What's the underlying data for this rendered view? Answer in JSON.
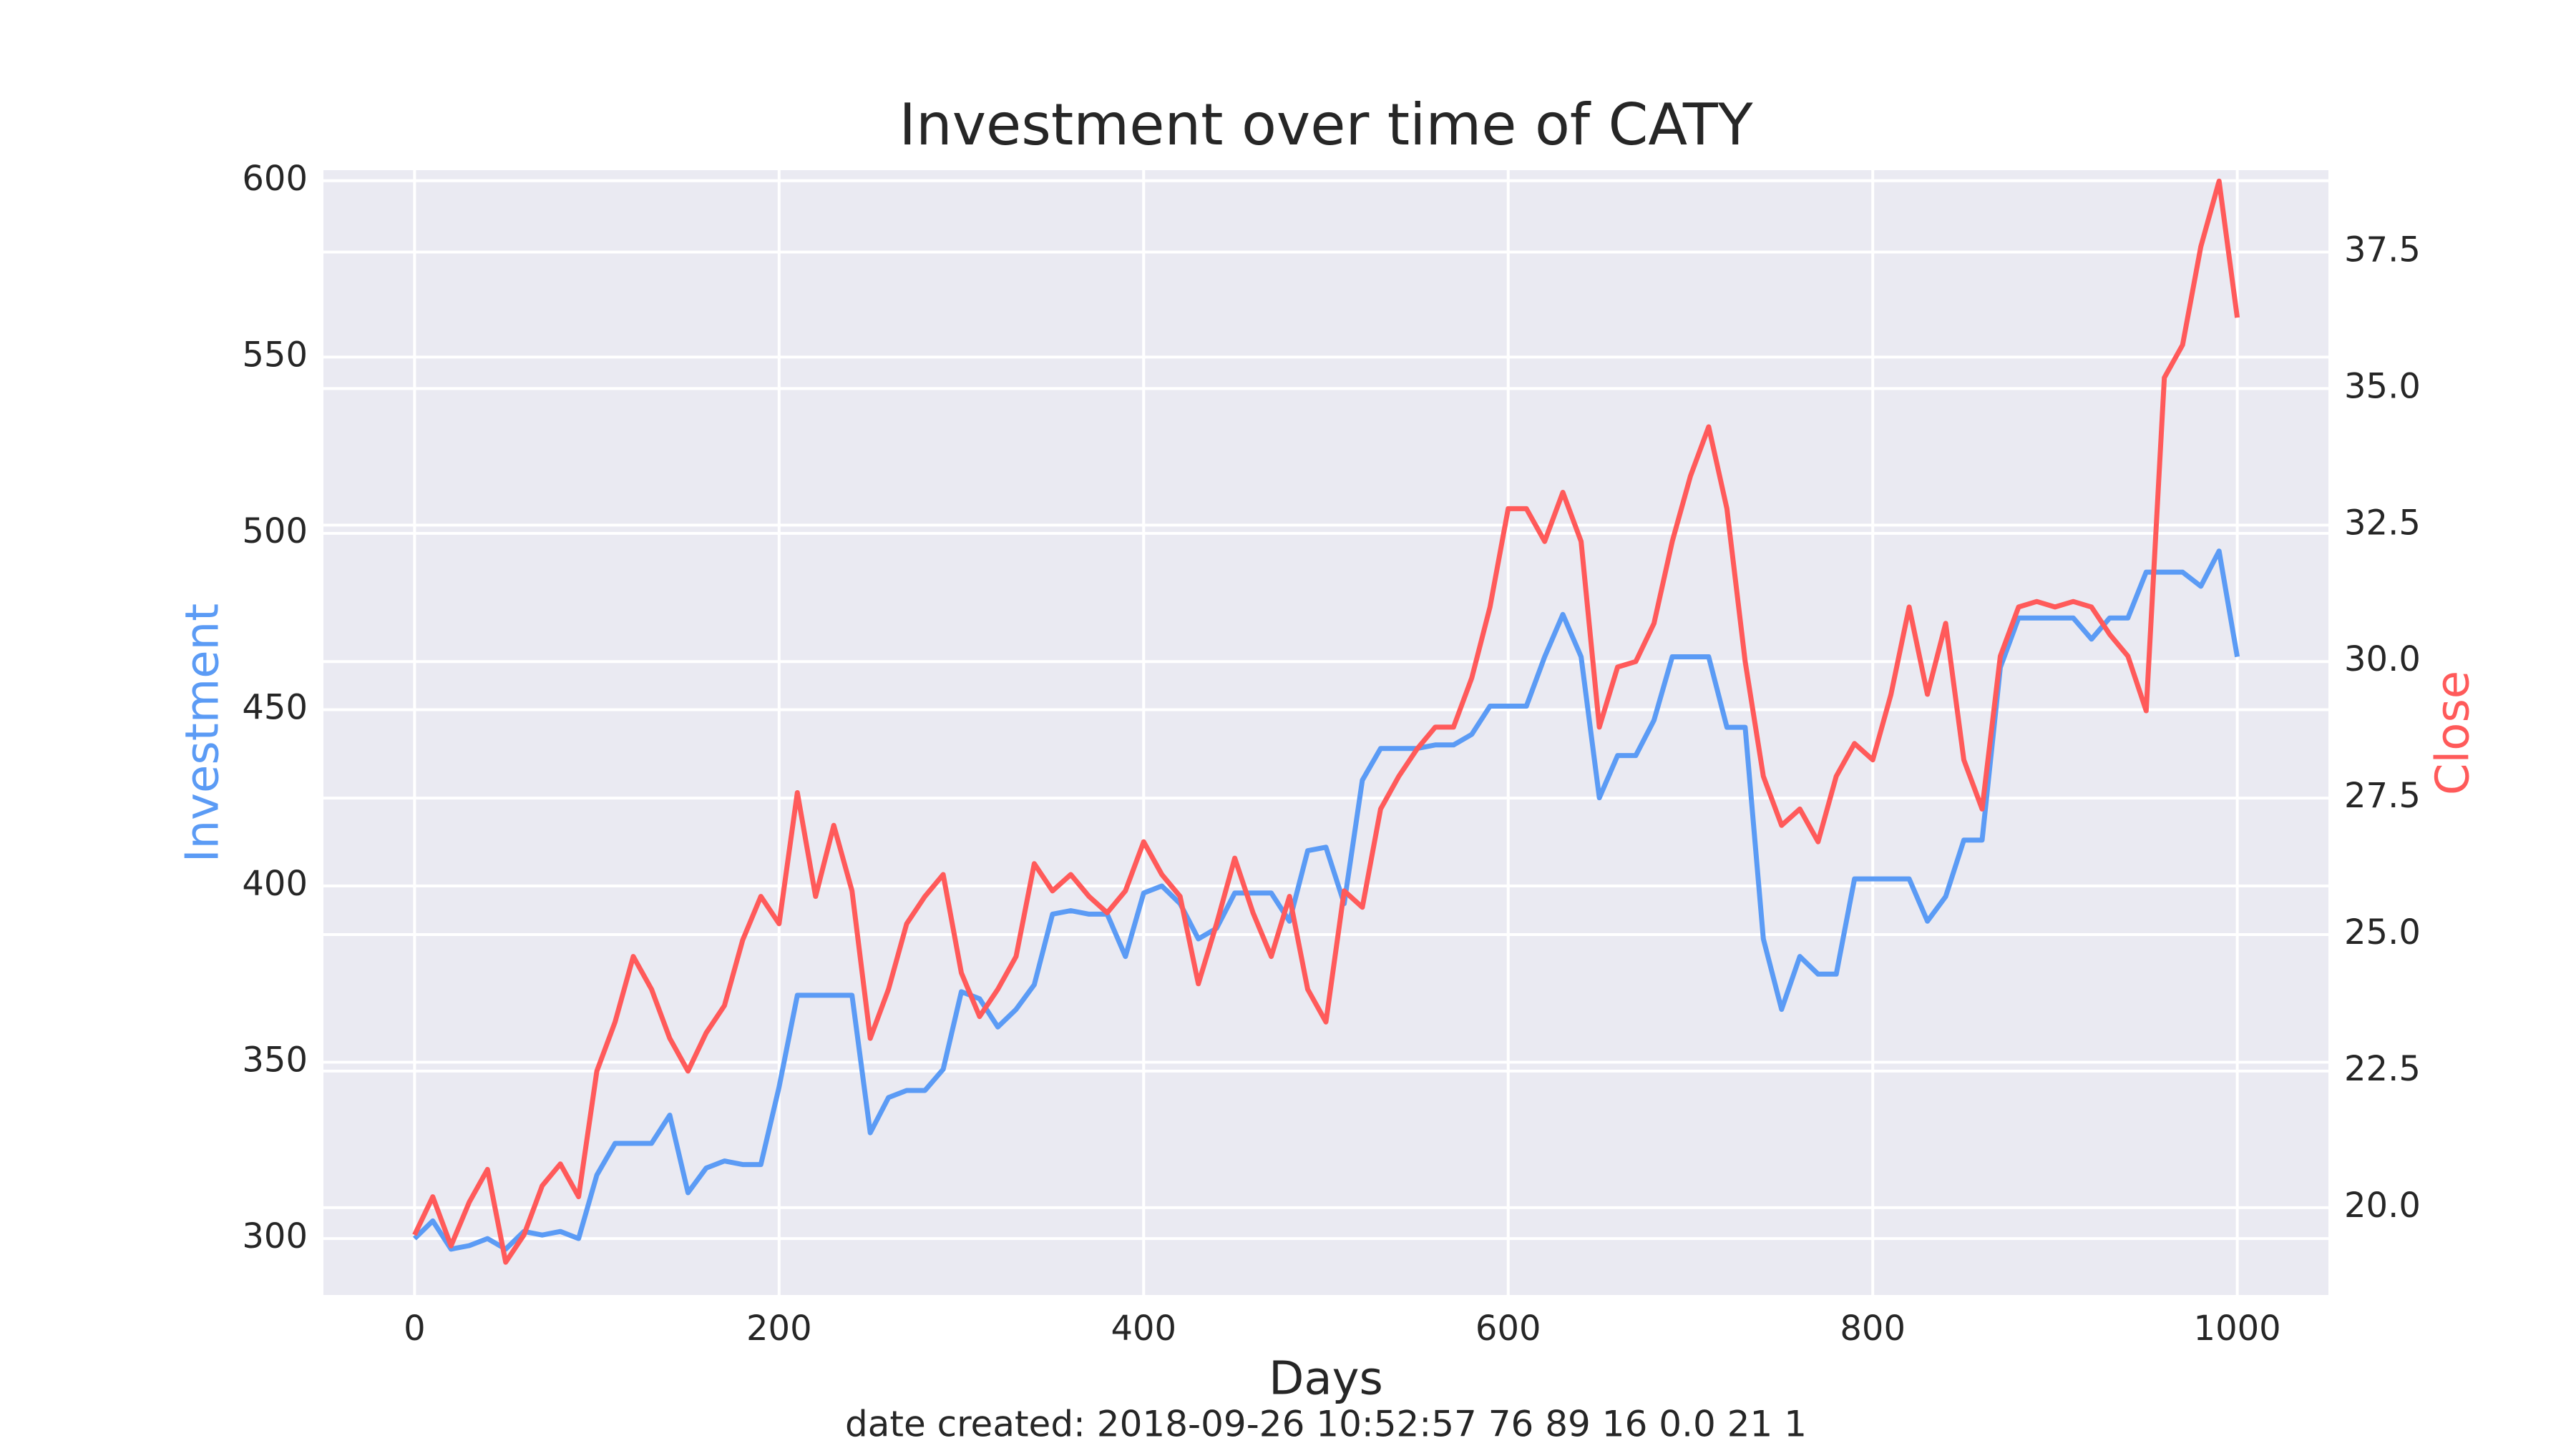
{
  "chart_data": {
    "type": "line",
    "title": "Investment over time of CATY",
    "xlabel": "Days",
    "annotation": "date created: 2018-09-26 10:52:57 76 89 16 0.0 21 1",
    "grid": true,
    "x": [
      0,
      10,
      20,
      30,
      40,
      50,
      60,
      70,
      80,
      90,
      100,
      110,
      120,
      130,
      140,
      150,
      160,
      170,
      180,
      190,
      200,
      210,
      220,
      230,
      240,
      250,
      260,
      270,
      280,
      290,
      300,
      310,
      320,
      330,
      340,
      350,
      360,
      370,
      380,
      390,
      400,
      410,
      420,
      430,
      440,
      450,
      460,
      470,
      480,
      490,
      500,
      510,
      520,
      530,
      540,
      550,
      560,
      570,
      580,
      590,
      600,
      610,
      620,
      630,
      640,
      650,
      660,
      670,
      680,
      690,
      700,
      710,
      720,
      730,
      740,
      750,
      760,
      770,
      780,
      790,
      800,
      810,
      820,
      830,
      840,
      850,
      860,
      870,
      880,
      890,
      900,
      910,
      920,
      930,
      940,
      950,
      960,
      970,
      980,
      990,
      1000
    ],
    "series": [
      {
        "name": "Investment",
        "color": "#5b9bf5",
        "axis": "y",
        "values": [
          300,
          305,
          297,
          298,
          300,
          297,
          302,
          301,
          302,
          300,
          318,
          327,
          327,
          327,
          335,
          313,
          320,
          322,
          321,
          321,
          343,
          369,
          369,
          369,
          369,
          330,
          340,
          342,
          342,
          348,
          370,
          368,
          360,
          365,
          372,
          392,
          393,
          392,
          392,
          380,
          398,
          400,
          395,
          385,
          388,
          398,
          398,
          398,
          390,
          410,
          411,
          395,
          430,
          439,
          439,
          439,
          440,
          440,
          443,
          451,
          451,
          451,
          465,
          477,
          465,
          425,
          437,
          437,
          447,
          465,
          465,
          465,
          445,
          445,
          385,
          365,
          380,
          375,
          375,
          402,
          402,
          402,
          402,
          390,
          397,
          413,
          413,
          462,
          476,
          476,
          476,
          476,
          470,
          476,
          476,
          489,
          489,
          489,
          485,
          495,
          465
        ]
      },
      {
        "name": "Close",
        "color": "#ff5a5a",
        "axis": "y2",
        "values": [
          19.5,
          20.2,
          19.3,
          20.1,
          20.7,
          19.0,
          19.5,
          20.4,
          20.8,
          20.2,
          22.5,
          23.4,
          24.6,
          24.0,
          23.1,
          22.5,
          23.2,
          23.7,
          24.9,
          25.7,
          25.2,
          27.6,
          25.7,
          27.0,
          25.8,
          23.1,
          24.0,
          25.2,
          25.7,
          26.1,
          24.3,
          23.5,
          24.0,
          24.6,
          26.3,
          25.8,
          26.1,
          25.7,
          25.4,
          25.8,
          26.7,
          26.1,
          25.7,
          24.1,
          25.2,
          26.4,
          25.4,
          24.6,
          25.7,
          24.0,
          23.4,
          25.8,
          25.5,
          27.3,
          27.9,
          28.4,
          28.8,
          28.8,
          29.7,
          31.0,
          32.8,
          32.8,
          32.2,
          33.1,
          32.2,
          28.8,
          29.9,
          30.0,
          30.7,
          32.2,
          33.4,
          34.3,
          32.8,
          30.0,
          27.9,
          27.0,
          27.3,
          26.7,
          27.9,
          28.5,
          28.2,
          29.4,
          31.0,
          29.4,
          30.7,
          28.2,
          27.3,
          30.1,
          31.0,
          31.1,
          31.0,
          31.1,
          31.0,
          30.5,
          30.1,
          29.1,
          35.2,
          35.8,
          37.6,
          38.8,
          36.3
        ]
      }
    ],
    "xlim": [
      -50,
      1050
    ],
    "xticks": [
      0,
      200,
      400,
      600,
      800,
      1000
    ],
    "ylim": [
      284,
      603
    ],
    "yticks": [
      300,
      350,
      400,
      450,
      500,
      550,
      600
    ],
    "y2lim": [
      18.4,
      39.0
    ],
    "y2ticks": [
      {
        "value": 20,
        "label": "20.0"
      },
      22.5,
      {
        "value": 25,
        "label": "25.0"
      },
      27.5,
      {
        "value": 30,
        "label": "30.0"
      },
      32.5,
      {
        "value": 35,
        "label": "35.0"
      },
      37.5
    ]
  }
}
